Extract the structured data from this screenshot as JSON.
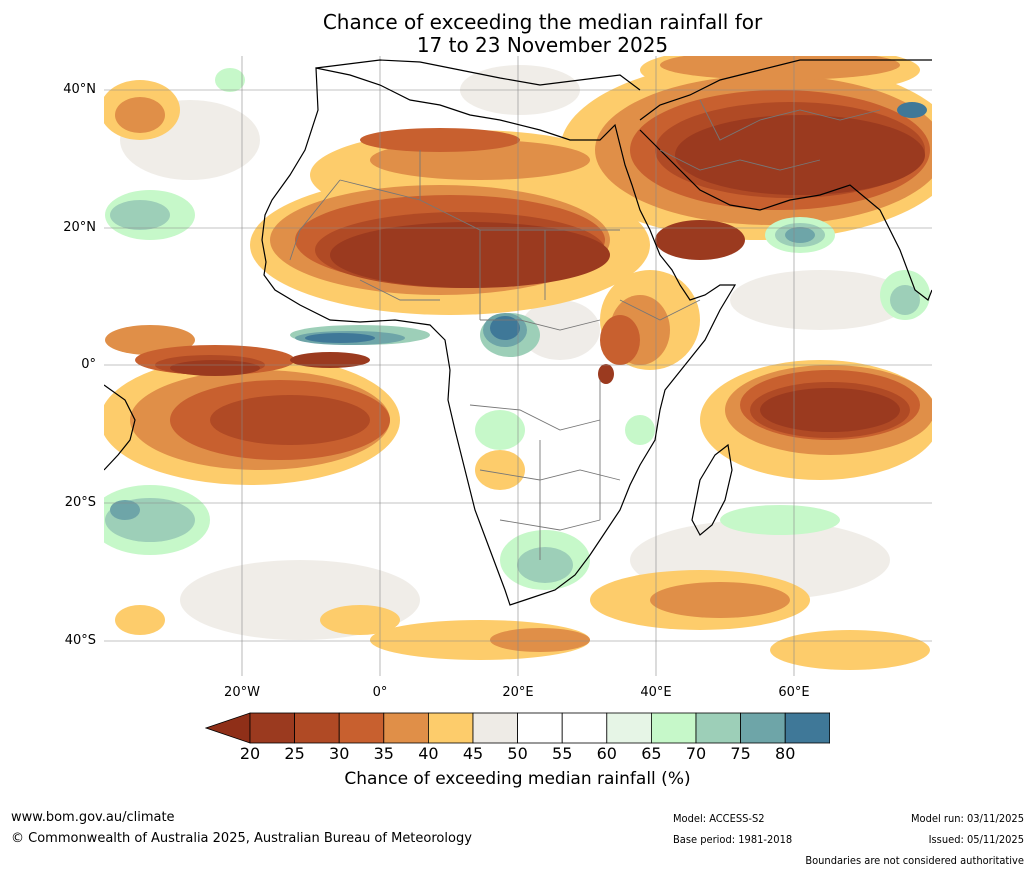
{
  "title": {
    "line1": "Chance of exceeding the median rainfall for",
    "line2": "17 to 23 November 2025"
  },
  "map": {
    "region": "Africa",
    "lat_labels": [
      "40°N",
      "20°N",
      "0°",
      "20°S",
      "40°S"
    ],
    "lon_labels": [
      "20°W",
      "0°",
      "20°E",
      "40°E",
      "60°E"
    ]
  },
  "colorbar": {
    "ticks": [
      "20",
      "25",
      "30",
      "35",
      "40",
      "45",
      "50",
      "55",
      "60",
      "65",
      "70",
      "75",
      "80"
    ],
    "colors": [
      "#9b3a1f",
      "#b04a25",
      "#c8602f",
      "#e08f48",
      "#fdcc6b",
      "#eeebe6",
      "#ffffff",
      "#ffffff",
      "#e6f5e6",
      "#c6f8c9",
      "#9dcfb8",
      "#6ea5a8",
      "#3f7898"
    ],
    "under_color": "#8f2f18",
    "over_color": "#0f4c88",
    "label": "Chance of exceeding median rainfall (%)"
  },
  "footer": {
    "website": "www.bom.gov.au/climate",
    "copyright": "© Commonwealth of Australia 2025, Australian Bureau of Meteorology",
    "model": "Model: ACCESS-S2",
    "base_period": "Base period: 1981-2018",
    "model_run": "Model run: 03/11/2025",
    "issued": "Issued: 05/11/2025",
    "disclaimer": "Boundaries are not considered authoritative"
  }
}
